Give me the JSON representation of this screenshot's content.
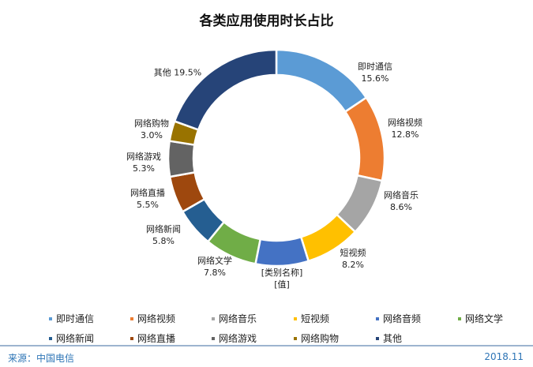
{
  "chart_data": {
    "type": "pie",
    "variant": "donut",
    "title": "各类应用使用时长占比",
    "categories": [
      "即时通信",
      "网络视频",
      "网络音乐",
      "短视频",
      "网络音频",
      "网络文学",
      "网络新闻",
      "网络直播",
      "网络游戏",
      "网络购物",
      "其他"
    ],
    "values": [
      15.6,
      12.8,
      8.6,
      8.2,
      7.9,
      7.8,
      5.8,
      5.5,
      5.3,
      3.0,
      19.5
    ],
    "unit": "%",
    "data_labels": [
      {
        "name": "即时通信",
        "value": "15.6%"
      },
      {
        "name": "网络视频",
        "value": "12.8%"
      },
      {
        "name": "网络音乐",
        "value": "8.6%"
      },
      {
        "name": "短视频",
        "value": "8.2%"
      },
      {
        "name": "[类别名称]",
        "value": "[值]"
      },
      {
        "name": "网络文学",
        "value": "7.8%"
      },
      {
        "name": "网络新闻",
        "value": "5.8%"
      },
      {
        "name": "网络直播",
        "value": "5.5%"
      },
      {
        "name": "网络游戏",
        "value": "5.3%"
      },
      {
        "name": "网络购物",
        "value": "3.0%"
      },
      {
        "name": "其他",
        "value": "19.5%"
      }
    ],
    "colors": [
      "#5b9bd5",
      "#ed7d31",
      "#a5a5a5",
      "#ffc000",
      "#4472c4",
      "#70ad47",
      "#255e91",
      "#9e480e",
      "#636363",
      "#997300",
      "#264478"
    ],
    "legend": {
      "position": "bottom",
      "entries": [
        "即时通信",
        "网络视频",
        "网络音乐",
        "短视频",
        "网络音频",
        "网络文学",
        "网络新闻",
        "网络直播",
        "网络游戏",
        "网络购物",
        "其他"
      ]
    }
  },
  "footer": {
    "source": "来源：中国电信",
    "date": "2018.11"
  }
}
